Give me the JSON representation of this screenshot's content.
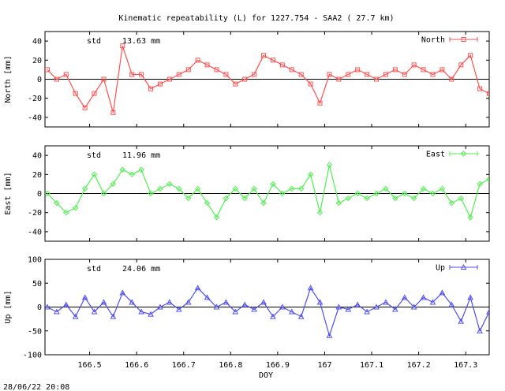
{
  "footer": {
    "timestamp": "28/06/22 20:08"
  },
  "chart_data": {
    "type": "line",
    "title": "Kinematic repeatability (L) for 1227.754 - SAA2  ( 27.7 km)",
    "xlabel": "DOY",
    "xlim": [
      166.405,
      167.35
    ],
    "xticks": [
      166.5,
      166.6,
      166.7,
      166.8,
      166.9,
      167,
      167.1,
      167.2,
      167.3
    ],
    "xtick_labels": [
      "166.5",
      "166.6",
      "166.7",
      "166.8",
      "166.9",
      "167",
      "167.1",
      "167.2",
      "167.3"
    ],
    "panels": [
      {
        "id": "north",
        "ylabel": "North [mm]",
        "legend": "North",
        "std_label": "std",
        "std_value": "13.63 mm",
        "color": "#ff5050",
        "marker": "square",
        "ylim": [
          -50,
          50
        ],
        "yticks": [
          -40,
          -20,
          0,
          20,
          40
        ],
        "x": [
          166.41,
          166.43,
          166.45,
          166.47,
          166.49,
          166.51,
          166.53,
          166.55,
          166.57,
          166.59,
          166.61,
          166.63,
          166.65,
          166.67,
          166.69,
          166.71,
          166.73,
          166.75,
          166.77,
          166.79,
          166.81,
          166.83,
          166.85,
          166.87,
          166.89,
          166.91,
          166.93,
          166.95,
          166.97,
          166.99,
          167.01,
          167.03,
          167.05,
          167.07,
          167.09,
          167.11,
          167.13,
          167.15,
          167.17,
          167.19,
          167.21,
          167.23,
          167.25,
          167.27,
          167.29,
          167.31,
          167.33,
          167.35
        ],
        "y": [
          10,
          0,
          5,
          -15,
          -30,
          -15,
          0,
          -35,
          35,
          5,
          5,
          -10,
          -5,
          0,
          5,
          10,
          20,
          15,
          10,
          5,
          -5,
          0,
          5,
          25,
          20,
          15,
          10,
          5,
          -5,
          -25,
          5,
          0,
          5,
          10,
          5,
          0,
          5,
          10,
          5,
          15,
          10,
          5,
          10,
          0,
          15,
          25,
          -10,
          -15
        ]
      },
      {
        "id": "east",
        "ylabel": "East [mm]",
        "legend": "East",
        "std_label": "std",
        "std_value": "11.96 mm",
        "color": "#50f050",
        "marker": "diamond",
        "ylim": [
          -50,
          50
        ],
        "yticks": [
          -40,
          -20,
          0,
          20,
          40
        ],
        "x": [
          166.41,
          166.43,
          166.45,
          166.47,
          166.49,
          166.51,
          166.53,
          166.55,
          166.57,
          166.59,
          166.61,
          166.63,
          166.65,
          166.67,
          166.69,
          166.71,
          166.73,
          166.75,
          166.77,
          166.79,
          166.81,
          166.83,
          166.85,
          166.87,
          166.89,
          166.91,
          166.93,
          166.95,
          166.97,
          166.99,
          167.01,
          167.03,
          167.05,
          167.07,
          167.09,
          167.11,
          167.13,
          167.15,
          167.17,
          167.19,
          167.21,
          167.23,
          167.25,
          167.27,
          167.29,
          167.31,
          167.33,
          167.35
        ],
        "y": [
          0,
          -10,
          -20,
          -15,
          5,
          20,
          0,
          10,
          25,
          20,
          25,
          0,
          5,
          10,
          5,
          -5,
          5,
          -10,
          -25,
          -5,
          5,
          -5,
          5,
          -10,
          10,
          0,
          5,
          5,
          20,
          -20,
          30,
          -10,
          -5,
          0,
          -5,
          0,
          5,
          -5,
          0,
          -5,
          5,
          0,
          5,
          -10,
          -5,
          -25,
          10,
          15
        ]
      },
      {
        "id": "up",
        "ylabel": "Up [mm]",
        "legend": "Up",
        "std_label": "std",
        "std_value": "24.06 mm",
        "color": "#5050f0",
        "marker": "triangle",
        "ylim": [
          -100,
          100
        ],
        "yticks": [
          -100,
          -50,
          0,
          50,
          100
        ],
        "x": [
          166.41,
          166.43,
          166.45,
          166.47,
          166.49,
          166.51,
          166.53,
          166.55,
          166.57,
          166.59,
          166.61,
          166.63,
          166.65,
          166.67,
          166.69,
          166.71,
          166.73,
          166.75,
          166.77,
          166.79,
          166.81,
          166.83,
          166.85,
          166.87,
          166.89,
          166.91,
          166.93,
          166.95,
          166.97,
          166.99,
          167.01,
          167.03,
          167.05,
          167.07,
          167.09,
          167.11,
          167.13,
          167.15,
          167.17,
          167.19,
          167.21,
          167.23,
          167.25,
          167.27,
          167.29,
          167.31,
          167.33,
          167.35
        ],
        "y": [
          0,
          -10,
          5,
          -20,
          20,
          -10,
          10,
          -20,
          30,
          10,
          -10,
          -15,
          0,
          10,
          -5,
          10,
          40,
          20,
          0,
          10,
          -10,
          5,
          -5,
          10,
          -20,
          0,
          -10,
          -20,
          40,
          10,
          -60,
          0,
          -5,
          5,
          -10,
          0,
          10,
          -5,
          20,
          0,
          20,
          10,
          30,
          5,
          -30,
          20,
          -50,
          -10
        ]
      }
    ]
  }
}
